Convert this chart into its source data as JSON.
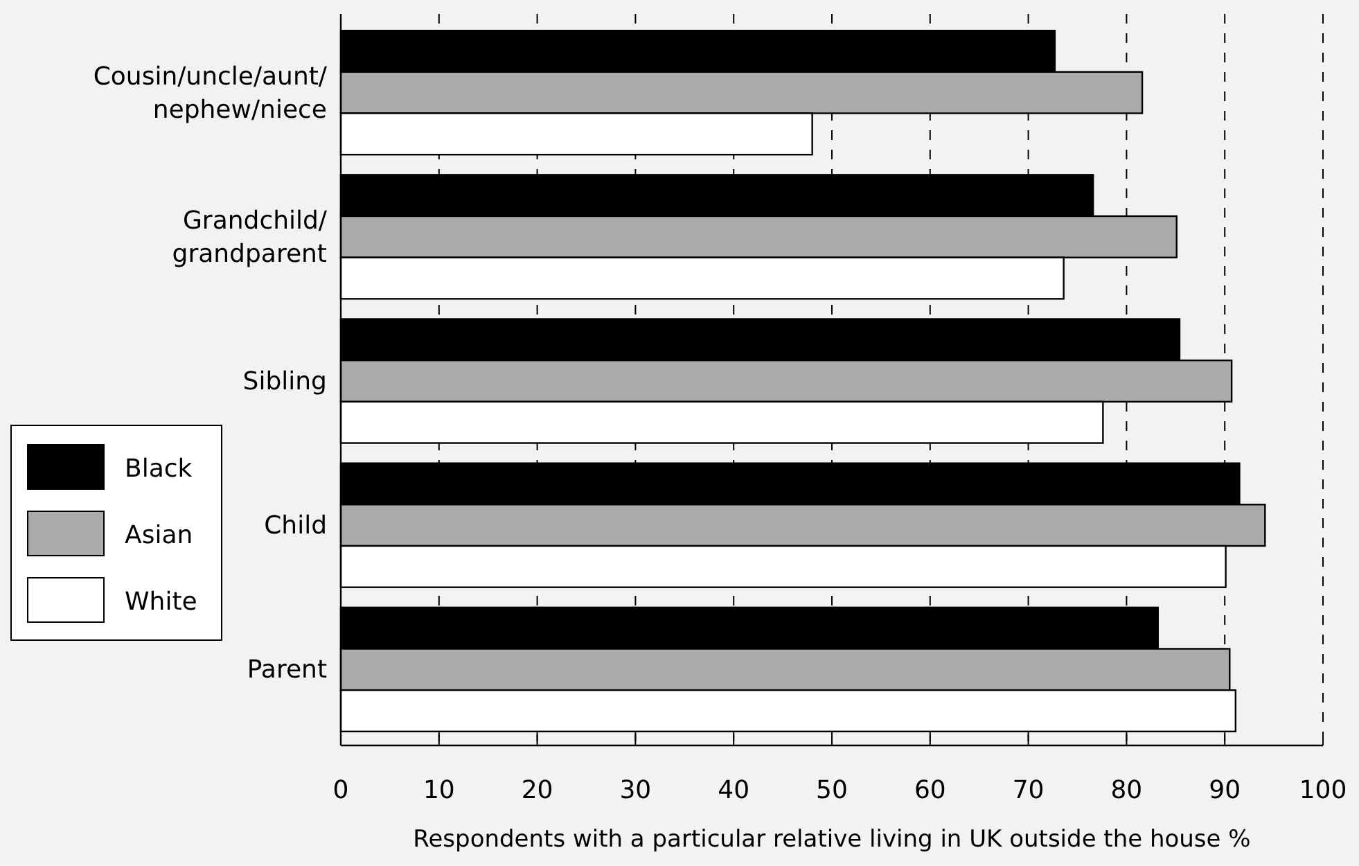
{
  "chart_data": {
    "type": "bar",
    "orientation": "horizontal",
    "xlabel": "Respondents with a particular relative living in UK outside the house %",
    "categories": [
      "Cousin/uncle/aunt/\nnephew/niece",
      "Grandchild/\ngrandparent",
      "Sibling",
      "Child",
      "Parent"
    ],
    "series": [
      {
        "name": "Black",
        "color": "#000000",
        "values": [
          72.7,
          76.6,
          85.4,
          91.5,
          83.2
        ]
      },
      {
        "name": "Asian",
        "color": "#aaaaaa",
        "values": [
          81.6,
          85.1,
          90.7,
          94.1,
          90.5
        ]
      },
      {
        "name": "White",
        "color": "#ffffff",
        "values": [
          48.0,
          73.6,
          77.6,
          90.1,
          91.1
        ]
      }
    ],
    "xlim": [
      0,
      100
    ],
    "xticks": [
      0,
      10,
      20,
      30,
      40,
      50,
      60,
      70,
      80,
      90,
      100
    ],
    "grid": "x",
    "legend": "left"
  }
}
